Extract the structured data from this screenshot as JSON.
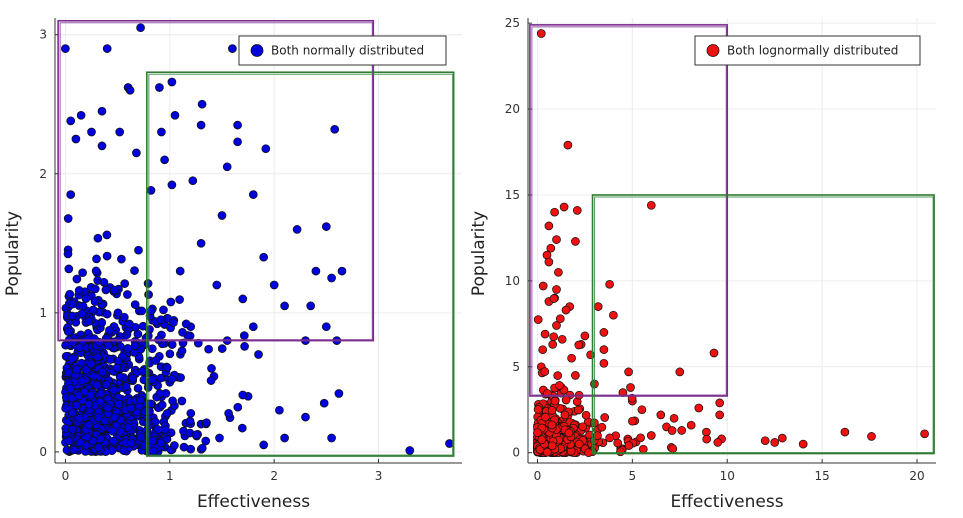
{
  "chart_data": [
    {
      "type": "scatter",
      "xlabel": "Effectiveness",
      "ylabel": "Popularity",
      "xlim": [
        -0.1,
        3.8
      ],
      "ylim": [
        -0.08,
        3.12
      ],
      "xticks": [
        0,
        1,
        2,
        3
      ],
      "yticks": [
        0,
        1,
        2,
        3
      ],
      "xtick_labels": [
        "0",
        "1",
        "2",
        "3"
      ],
      "ytick_labels": [
        "0",
        "1",
        "2",
        "3"
      ],
      "grid": true,
      "legend_position": "top-right",
      "series": [
        {
          "name": "Both normally distributed",
          "color": "#0000dd",
          "points": [
            [
              0.72,
              3.05
            ],
            [
              0.0,
              2.9
            ],
            [
              0.4,
              2.9
            ],
            [
              1.6,
              2.9
            ],
            [
              1.02,
              2.66
            ],
            [
              0.9,
              2.62
            ],
            [
              0.6,
              2.62
            ],
            [
              0.62,
              2.6
            ],
            [
              1.31,
              2.5
            ],
            [
              1.05,
              2.42
            ],
            [
              0.15,
              2.42
            ],
            [
              0.05,
              2.38
            ],
            [
              0.35,
              2.45
            ],
            [
              2.58,
              2.32
            ],
            [
              1.65,
              2.35
            ],
            [
              1.3,
              2.35
            ],
            [
              0.92,
              2.3
            ],
            [
              0.52,
              2.3
            ],
            [
              1.65,
              2.23
            ],
            [
              1.92,
              2.18
            ],
            [
              0.25,
              2.3
            ],
            [
              0.1,
              2.25
            ],
            [
              0.68,
              2.15
            ],
            [
              0.95,
              2.1
            ],
            [
              0.35,
              2.2
            ],
            [
              1.55,
              2.05
            ],
            [
              1.8,
              1.85
            ],
            [
              1.22,
              1.95
            ],
            [
              1.02,
              1.92
            ],
            [
              0.82,
              1.88
            ],
            [
              0.05,
              1.85
            ],
            [
              2.22,
              1.6
            ],
            [
              2.5,
              1.62
            ],
            [
              2.65,
              1.3
            ],
            [
              2.55,
              1.25
            ],
            [
              2.4,
              1.3
            ],
            [
              2.35,
              1.05
            ],
            [
              2.5,
              0.9
            ],
            [
              2.6,
              0.8
            ],
            [
              2.1,
              1.05
            ],
            [
              1.9,
              1.4
            ],
            [
              2.0,
              1.2
            ],
            [
              2.3,
              0.8
            ],
            [
              1.8,
              0.9
            ],
            [
              3.3,
              0.01
            ],
            [
              3.68,
              0.06
            ],
            [
              2.62,
              0.42
            ],
            [
              2.48,
              0.35
            ],
            [
              2.3,
              0.25
            ],
            [
              2.1,
              0.1
            ],
            [
              1.9,
              0.05
            ],
            [
              2.55,
              0.1
            ],
            [
              1.5,
              1.7
            ],
            [
              1.3,
              1.5
            ],
            [
              0.7,
              1.45
            ],
            [
              1.1,
              1.3
            ],
            [
              1.45,
              1.2
            ],
            [
              1.7,
              1.1
            ],
            [
              1.2,
              0.9
            ],
            [
              1.55,
              0.8
            ],
            [
              1.85,
              0.7
            ],
            [
              1.4,
              0.6
            ],
            [
              1.0,
              0.5
            ],
            [
              1.75,
              0.4
            ],
            [
              2.05,
              0.3
            ],
            [
              1.3,
              0.2
            ],
            [
              0.9,
              0.1
            ],
            [
              0.55,
              0.05
            ],
            [
              0.2,
              0.02
            ],
            [
              0.05,
              0.08
            ],
            [
              1.2,
              0.02
            ]
          ],
          "random_fill": {
            "count": 900,
            "x_sd": 0.55,
            "y_sd": 0.55,
            "x_mean_hint": 0.6,
            "y_mean_hint": 0.8,
            "seed": 7
          }
        }
      ],
      "annotations": [
        {
          "shape": "rectangle",
          "color": "#7b2d8e",
          "x_range": [
            -0.07,
            2.95
          ],
          "y_range": [
            0.8,
            3.1
          ]
        },
        {
          "shape": "rectangle",
          "color": "#2e7d32",
          "x_range": [
            0.78,
            3.72
          ],
          "y_range": [
            -0.03,
            2.73
          ]
        }
      ]
    },
    {
      "type": "scatter",
      "xlabel": "Effectiveness",
      "ylabel": "Popularity",
      "xlim": [
        -0.5,
        21
      ],
      "ylim": [
        -0.6,
        25.3
      ],
      "xticks": [
        0,
        5,
        10,
        15,
        20
      ],
      "yticks": [
        0,
        5,
        10,
        15,
        20,
        25
      ],
      "xtick_labels": [
        "0",
        "5",
        "10",
        "15",
        "20"
      ],
      "ytick_labels": [
        "0",
        "5",
        "10",
        "15",
        "20",
        "25"
      ],
      "grid": true,
      "legend_position": "top-right",
      "series": [
        {
          "name": "Both lognormally distributed",
          "color": "#ee1111",
          "points": [
            [
              0.2,
              24.4
            ],
            [
              1.6,
              17.9
            ],
            [
              6.0,
              14.4
            ],
            [
              1.4,
              14.3
            ],
            [
              2.1,
              14.1
            ],
            [
              0.9,
              14.0
            ],
            [
              0.6,
              13.2
            ],
            [
              1.0,
              12.4
            ],
            [
              2.0,
              12.3
            ],
            [
              0.7,
              11.9
            ],
            [
              0.5,
              11.5
            ],
            [
              0.6,
              11.1
            ],
            [
              1.1,
              10.5
            ],
            [
              3.8,
              9.8
            ],
            [
              0.3,
              9.7
            ],
            [
              1.0,
              9.5
            ],
            [
              0.9,
              9.0
            ],
            [
              0.6,
              8.8
            ],
            [
              1.7,
              8.5
            ],
            [
              3.2,
              8.5
            ],
            [
              1.5,
              8.3
            ],
            [
              4.0,
              8.0
            ],
            [
              1.2,
              7.8
            ],
            [
              1.0,
              7.4
            ],
            [
              3.5,
              7.0
            ],
            [
              0.4,
              6.9
            ],
            [
              1.3,
              6.6
            ],
            [
              2.3,
              6.3
            ],
            [
              0.8,
              6.3
            ],
            [
              3.5,
              6.0
            ],
            [
              9.3,
              5.8
            ],
            [
              2.8,
              5.7
            ],
            [
              3.5,
              5.2
            ],
            [
              7.5,
              4.7
            ],
            [
              4.8,
              4.7
            ],
            [
              9.6,
              2.9
            ],
            [
              9.6,
              2.2
            ],
            [
              8.5,
              2.6
            ],
            [
              8.1,
              1.6
            ],
            [
              7.6,
              1.3
            ],
            [
              8.9,
              1.2
            ],
            [
              9.7,
              0.8
            ],
            [
              9.5,
              0.6
            ],
            [
              12.0,
              0.7
            ],
            [
              12.5,
              0.6
            ],
            [
              12.9,
              0.85
            ],
            [
              14.0,
              0.5
            ],
            [
              16.2,
              1.2
            ],
            [
              17.6,
              0.95
            ],
            [
              20.4,
              1.1
            ],
            [
              6.5,
              2.2
            ],
            [
              7.2,
              2.0
            ],
            [
              5.5,
              2.5
            ],
            [
              6.8,
              1.5
            ],
            [
              6.0,
              1.0
            ],
            [
              5.0,
              3.0
            ],
            [
              4.5,
              3.5
            ],
            [
              3.0,
              4.0
            ],
            [
              2.0,
              4.5
            ],
            [
              0.2,
              5.0
            ],
            [
              1.8,
              5.5
            ],
            [
              2.5,
              6.8
            ]
          ],
          "random_fill": {
            "count": 700,
            "lognormal_sigma": 0.75,
            "seed": 11
          }
        }
      ],
      "annotations": [
        {
          "shape": "rectangle",
          "color": "#7b2d8e",
          "x_range": [
            -0.4,
            10.0
          ],
          "y_range": [
            3.3,
            24.9
          ]
        },
        {
          "shape": "rectangle",
          "color": "#2e7d32",
          "x_range": [
            2.9,
            20.9
          ],
          "y_range": [
            -0.05,
            15.0
          ]
        }
      ]
    }
  ]
}
